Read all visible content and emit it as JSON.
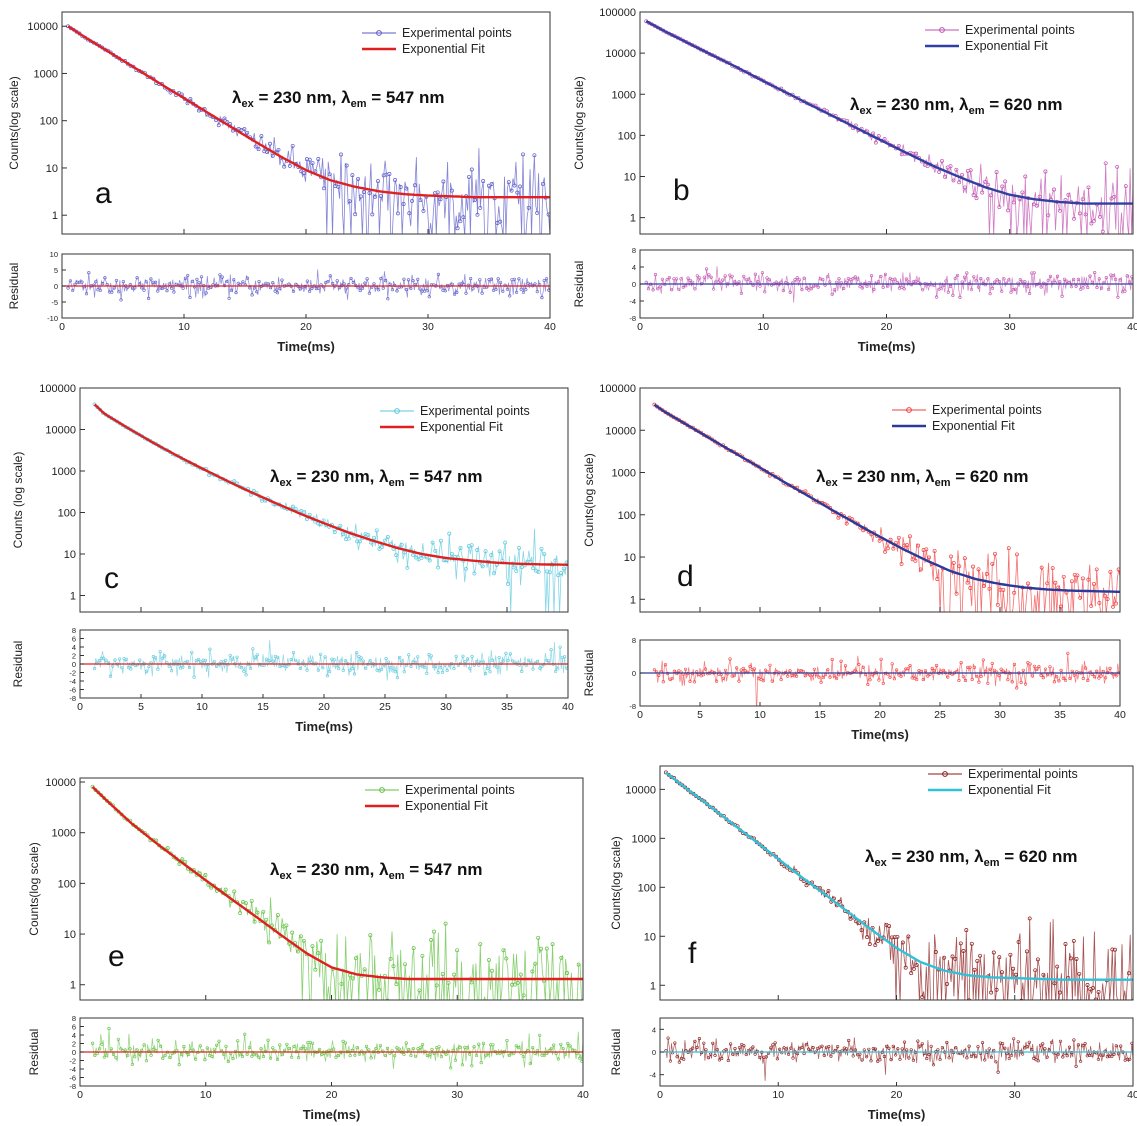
{
  "chart_data": [
    {
      "type": "line",
      "panel": "a",
      "letter": "a",
      "ylabel": "Counts(log scale)",
      "residual_label": "Residual",
      "xlabel": "Time(ms)",
      "yscale": "log",
      "ylim": [
        0.4,
        20000
      ],
      "yticks": [
        1,
        10,
        100,
        1000,
        10000
      ],
      "yticklabels": [
        "1",
        "10",
        "100",
        "1000",
        "10000"
      ],
      "xlim": [
        0,
        40
      ],
      "xticks": [
        0,
        10,
        20,
        30,
        40
      ],
      "xticklabels": [
        "0",
        "10",
        "20",
        "30",
        "40"
      ],
      "residual_ylim": [
        -10,
        10
      ],
      "residual_yticks": [
        -10,
        -5,
        0,
        5,
        10
      ],
      "residual_yticklabels": [
        "-10",
        "-5",
        "0",
        "5",
        "10"
      ],
      "annotation": {
        "lambda": "λ",
        "ex_sub": "ex",
        "ex_text": " = 230 nm, ",
        "em_sub": "em",
        "em_text": " = 547 nm"
      },
      "legend": {
        "position": "top-right",
        "entries": [
          "Experimental points",
          "Exponential Fit"
        ]
      },
      "series": [
        {
          "name": "Experimental points",
          "color": "#5b5bc8",
          "marker": "circle",
          "x": [
            0.5,
            2,
            4,
            6,
            8,
            10,
            12,
            14,
            16,
            18,
            20,
            22,
            24,
            26,
            28,
            30,
            32,
            34,
            36,
            38,
            40
          ],
          "y": [
            10000,
            5600,
            2700,
            1300,
            620,
            300,
            145,
            70,
            34,
            17,
            9,
            5.5,
            4,
            3.2,
            2.8,
            2.6,
            2.5,
            2.4,
            2.4,
            2.4,
            2.4
          ]
        },
        {
          "name": "Exponential Fit",
          "color": "#e02020",
          "x": [
            0.5,
            2,
            4,
            6,
            8,
            10,
            12,
            14,
            16,
            18,
            20,
            22,
            24,
            26,
            28,
            30,
            32,
            34,
            36,
            38,
            40
          ],
          "y": [
            10000,
            5600,
            2700,
            1300,
            620,
            300,
            145,
            70,
            34,
            17,
            9,
            5.5,
            4,
            3.2,
            2.8,
            2.6,
            2.5,
            2.4,
            2.4,
            2.4,
            2.4
          ]
        }
      ],
      "residual_color": "#5b5bc8"
    },
    {
      "type": "line",
      "panel": "b",
      "letter": "b",
      "ylabel": "Counts(log scale)",
      "residual_label": "Residual",
      "xlabel": "Time(ms)",
      "yscale": "log",
      "ylim": [
        0.4,
        100000
      ],
      "yticks": [
        1,
        10,
        100,
        1000,
        10000,
        100000
      ],
      "yticklabels": [
        "1",
        "10",
        "100",
        "1000",
        "10000",
        "100000"
      ],
      "xlim": [
        0,
        40
      ],
      "xticks": [
        0,
        10,
        20,
        30,
        40
      ],
      "xticklabels": [
        "0",
        "10",
        "20",
        "30",
        "40"
      ],
      "residual_ylim": [
        -8,
        8
      ],
      "residual_yticks": [
        -8,
        -4,
        0,
        4,
        8
      ],
      "residual_yticklabels": [
        "-8",
        "-4",
        "0",
        "4",
        "8"
      ],
      "annotation": {
        "lambda": "λ",
        "ex_sub": "ex",
        "ex_text": " = 230 nm, ",
        "em_sub": "em",
        "em_text": " = 620 nm"
      },
      "legend": {
        "position": "top-right",
        "entries": [
          "Experimental points",
          "Exponential Fit"
        ]
      },
      "series": [
        {
          "name": "Experimental points",
          "color": "#c050b0",
          "marker": "circle",
          "x": [
            0.5,
            2,
            4,
            6,
            8,
            10,
            12,
            14,
            16,
            18,
            20,
            22,
            24,
            26,
            28,
            30,
            32,
            34,
            36,
            38,
            40
          ],
          "y": [
            60000,
            34000,
            17000,
            8500,
            4300,
            2100,
            1050,
            520,
            260,
            130,
            65,
            33,
            17,
            9.5,
            5.5,
            3.6,
            2.8,
            2.4,
            2.2,
            2.2,
            2.2
          ]
        },
        {
          "name": "Exponential Fit",
          "color": "#3040a0",
          "x": [
            0.5,
            2,
            4,
            6,
            8,
            10,
            12,
            14,
            16,
            18,
            20,
            22,
            24,
            26,
            28,
            30,
            32,
            34,
            36,
            38,
            40
          ],
          "y": [
            60000,
            34000,
            17000,
            8500,
            4300,
            2100,
            1050,
            520,
            260,
            130,
            65,
            33,
            17,
            9.5,
            5.5,
            3.6,
            2.8,
            2.4,
            2.2,
            2.2,
            2.2
          ]
        }
      ],
      "residual_color": "#c050b0"
    },
    {
      "type": "line",
      "panel": "c",
      "letter": "c",
      "ylabel": "Counts (log scale)",
      "residual_label": "Residual",
      "xlabel": "Time(ms)",
      "yscale": "log",
      "ylim": [
        0.4,
        100000
      ],
      "yticks": [
        1,
        10,
        100,
        1000,
        10000,
        100000
      ],
      "yticklabels": [
        "1",
        "10",
        "100",
        "1000",
        "10000",
        "100000"
      ],
      "xlim": [
        0,
        40
      ],
      "xticks": [
        0,
        5,
        10,
        15,
        20,
        25,
        30,
        35,
        40
      ],
      "xticklabels": [
        "0",
        "5",
        "10",
        "15",
        "20",
        "25",
        "30",
        "35",
        "40"
      ],
      "residual_ylim": [
        -8,
        8
      ],
      "residual_yticks": [
        -8,
        -6,
        -4,
        -2,
        0,
        2,
        4,
        6,
        8
      ],
      "residual_yticklabels": [
        "-8",
        "-6",
        "-4",
        "-2",
        "0",
        "2",
        "4",
        "6",
        "8"
      ],
      "annotation": {
        "lambda": "λ",
        "ex_sub": "ex",
        "ex_text": " = 230 nm, ",
        "em_sub": "em",
        "em_text": " = 547 nm"
      },
      "legend": {
        "position": "top-right",
        "entries": [
          "Experimental points",
          "Exponential Fit"
        ]
      },
      "series": [
        {
          "name": "Experimental points",
          "color": "#5ec8dc",
          "marker": "circle",
          "x": [
            1.2,
            2,
            4,
            6,
            8,
            10,
            12,
            14,
            16,
            18,
            20,
            22,
            24,
            26,
            28,
            30,
            32,
            34,
            36,
            38,
            40
          ],
          "y": [
            40000,
            24000,
            10500,
            4800,
            2300,
            1150,
            590,
            310,
            170,
            95,
            55,
            33,
            21,
            14,
            10,
            8,
            7,
            6.2,
            5.8,
            5.6,
            5.5
          ]
        },
        {
          "name": "Exponential Fit",
          "color": "#e02020",
          "x": [
            1.2,
            2,
            4,
            6,
            8,
            10,
            12,
            14,
            16,
            18,
            20,
            22,
            24,
            26,
            28,
            30,
            32,
            34,
            36,
            38,
            40
          ],
          "y": [
            40000,
            24000,
            10500,
            4800,
            2300,
            1150,
            590,
            310,
            170,
            95,
            55,
            33,
            21,
            14,
            10,
            8,
            7,
            6.2,
            5.8,
            5.6,
            5.5
          ]
        }
      ],
      "residual_color": "#5ec8dc"
    },
    {
      "type": "line",
      "panel": "d",
      "letter": "d",
      "ylabel": "Counts(log scale)",
      "residual_label": "Residual",
      "xlabel": "Time(ms)",
      "yscale": "log",
      "ylim": [
        0.5,
        100000
      ],
      "yticks": [
        1,
        10,
        100,
        1000,
        10000,
        100000
      ],
      "yticklabels": [
        "1",
        "10",
        "100",
        "1000",
        "10000",
        "100000"
      ],
      "xlim": [
        0,
        40
      ],
      "xticks": [
        0,
        5,
        10,
        15,
        20,
        25,
        30,
        35,
        40
      ],
      "xticklabels": [
        "0",
        "5",
        "10",
        "15",
        "20",
        "25",
        "30",
        "35",
        "40"
      ],
      "residual_ylim": [
        -8,
        8
      ],
      "residual_yticks": [
        -8,
        0,
        8
      ],
      "residual_yticklabels": [
        "-8",
        "0",
        "8"
      ],
      "annotation": {
        "lambda": "λ",
        "ex_sub": "ex",
        "ex_text": " = 230 nm, ",
        "em_sub": "em",
        "em_text": " = 620 nm"
      },
      "legend": {
        "position": "top-right",
        "entries": [
          "Experimental points",
          "Exponential Fit"
        ]
      },
      "series": [
        {
          "name": "Experimental points",
          "color": "#f04040",
          "marker": "circle",
          "x": [
            1.2,
            2,
            4,
            6,
            8,
            10,
            12,
            14,
            16,
            18,
            20,
            22,
            24,
            26,
            28,
            30,
            32,
            34,
            36,
            38,
            40
          ],
          "y": [
            40000,
            28000,
            13000,
            6000,
            2800,
            1300,
            600,
            280,
            130,
            62,
            30,
            15,
            8,
            4.5,
            3,
            2.3,
            1.9,
            1.7,
            1.6,
            1.55,
            1.5
          ]
        },
        {
          "name": "Exponential Fit",
          "color": "#2a3a9a",
          "x": [
            1.2,
            2,
            4,
            6,
            8,
            10,
            12,
            14,
            16,
            18,
            20,
            22,
            24,
            26,
            28,
            30,
            32,
            34,
            36,
            38,
            40
          ],
          "y": [
            40000,
            28000,
            13000,
            6000,
            2800,
            1300,
            600,
            280,
            130,
            62,
            30,
            15,
            8,
            4.5,
            3,
            2.3,
            1.9,
            1.7,
            1.6,
            1.55,
            1.5
          ]
        }
      ],
      "residual_color": "#f04040"
    },
    {
      "type": "line",
      "panel": "e",
      "letter": "e",
      "ylabel": "Counts(log scale)",
      "residual_label": "Residual",
      "xlabel": "Time(ms)",
      "yscale": "log",
      "ylim": [
        0.5,
        12000
      ],
      "yticks": [
        1,
        10,
        100,
        1000,
        10000
      ],
      "yticklabels": [
        "1",
        "10",
        "100",
        "1000",
        "10000"
      ],
      "xlim": [
        0,
        40
      ],
      "xticks": [
        0,
        10,
        20,
        30,
        40
      ],
      "xticklabels": [
        "0",
        "10",
        "20",
        "30",
        "40"
      ],
      "residual_ylim": [
        -8,
        8
      ],
      "residual_yticks": [
        -8,
        -6,
        -4,
        -2,
        0,
        2,
        4,
        6,
        8
      ],
      "residual_yticklabels": [
        "-8",
        "-6",
        "-4",
        "-2",
        "0",
        "2",
        "4",
        "6",
        "8"
      ],
      "annotation": {
        "lambda": "λ",
        "ex_sub": "ex",
        "ex_text": " = 230 nm, ",
        "em_sub": "em",
        "em_text": " = 547 nm"
      },
      "legend": {
        "position": "top-right",
        "entries": [
          "Experimental points",
          "Exponential Fit"
        ]
      },
      "series": [
        {
          "name": "Experimental points",
          "color": "#60c040",
          "marker": "circle",
          "x": [
            1,
            2,
            4,
            6,
            8,
            10,
            12,
            14,
            16,
            18,
            20,
            22,
            24,
            26,
            28,
            30,
            32,
            34,
            36,
            38,
            40
          ],
          "y": [
            8000,
            4600,
            1600,
            640,
            270,
            115,
            50,
            22,
            9.5,
            4.2,
            2.2,
            1.6,
            1.4,
            1.3,
            1.3,
            1.3,
            1.3,
            1.3,
            1.3,
            1.3,
            1.3
          ]
        },
        {
          "name": "Exponential Fit",
          "color": "#e02020",
          "x": [
            1,
            2,
            4,
            6,
            8,
            10,
            12,
            14,
            16,
            18,
            20,
            22,
            24,
            26,
            28,
            30,
            32,
            34,
            36,
            38,
            40
          ],
          "y": [
            8000,
            4600,
            1600,
            640,
            270,
            115,
            50,
            22,
            9.5,
            4.2,
            2.2,
            1.6,
            1.4,
            1.3,
            1.3,
            1.3,
            1.3,
            1.3,
            1.3,
            1.3,
            1.3
          ]
        }
      ],
      "residual_color": "#60c040"
    },
    {
      "type": "line",
      "panel": "f",
      "letter": "f",
      "ylabel": "Counts(log scale)",
      "residual_label": "Residual",
      "xlabel": "Time(ms)",
      "yscale": "log",
      "ylim": [
        0.5,
        30000
      ],
      "yticks": [
        1,
        10,
        100,
        1000,
        10000
      ],
      "yticklabels": [
        "1",
        "10",
        "100",
        "1000",
        "10000"
      ],
      "xlim": [
        0,
        40
      ],
      "xticks": [
        0,
        10,
        20,
        30,
        40
      ],
      "xticklabels": [
        "0",
        "10",
        "20",
        "30",
        "40"
      ],
      "residual_ylim": [
        -6,
        6
      ],
      "residual_yticks": [
        -4,
        0,
        4
      ],
      "residual_yticklabels": [
        "-4",
        "0",
        "4"
      ],
      "annotation": {
        "lambda": "λ",
        "ex_sub": "ex",
        "ex_text": " = 230 nm, ",
        "em_sub": "em",
        "em_text": " = 620 nm"
      },
      "legend": {
        "position": "top-right",
        "entries": [
          "Experimental points",
          "Exponential Fit"
        ]
      },
      "series": [
        {
          "name": "Experimental points",
          "color": "#8b1a1a",
          "marker": "circle",
          "x": [
            0.5,
            2,
            4,
            6,
            8,
            10,
            12,
            14,
            16,
            18,
            20,
            22,
            24,
            26,
            28,
            30,
            32,
            34,
            36,
            38,
            40
          ],
          "y": [
            22000,
            11500,
            5000,
            2100,
            900,
            380,
            160,
            70,
            30,
            13,
            5.8,
            3,
            2,
            1.6,
            1.45,
            1.4,
            1.35,
            1.3,
            1.3,
            1.3,
            1.3
          ]
        },
        {
          "name": "Exponential Fit",
          "color": "#30c0d8",
          "x": [
            0.5,
            2,
            4,
            6,
            8,
            10,
            12,
            14,
            16,
            18,
            20,
            22,
            24,
            26,
            28,
            30,
            32,
            34,
            36,
            38,
            40
          ],
          "y": [
            22000,
            11500,
            5000,
            2100,
            900,
            380,
            160,
            70,
            30,
            13,
            5.8,
            3,
            2,
            1.6,
            1.45,
            1.4,
            1.35,
            1.3,
            1.3,
            1.3,
            1.3
          ]
        }
      ],
      "residual_color": "#8b1a1a"
    }
  ]
}
